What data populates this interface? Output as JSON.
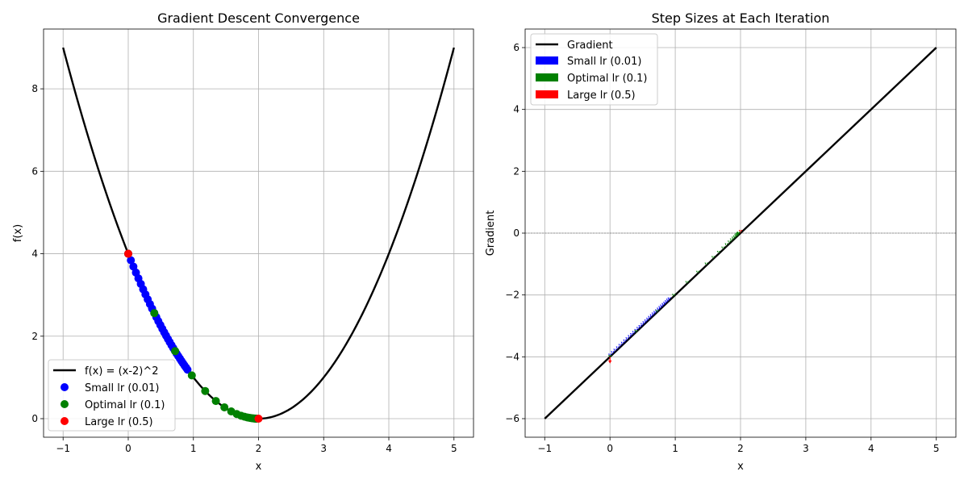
{
  "chart_data": [
    {
      "type": "line",
      "title": "Gradient Descent Convergence",
      "xlabel": "x",
      "ylabel": "f(x)",
      "xlim": [
        -1.3,
        5.3
      ],
      "ylim": [
        -0.45,
        9.45
      ],
      "xticks": [
        -1,
        0,
        1,
        2,
        3,
        4,
        5
      ],
      "yticks": [
        0,
        2,
        4,
        6,
        8
      ],
      "grid": true,
      "legend_position": "lower-left",
      "curve": {
        "name": "f(x) = (x-2)^2",
        "function": "(x-2)^2",
        "x_range": [
          -1,
          5
        ],
        "color": "#000000"
      },
      "series": [
        {
          "name": "Small lr (0.01)",
          "color": "#0000ff",
          "points": [
            [
              0.0,
              4.0
            ],
            [
              0.04,
              3.842
            ],
            [
              0.079,
              3.689
            ],
            [
              0.118,
              3.543
            ],
            [
              0.156,
              3.403
            ],
            [
              0.193,
              3.268
            ],
            [
              0.229,
              3.138
            ],
            [
              0.264,
              3.014
            ],
            [
              0.299,
              2.894
            ],
            [
              0.333,
              2.779
            ],
            [
              0.366,
              2.669
            ],
            [
              0.399,
              2.563
            ],
            [
              0.431,
              2.462
            ],
            [
              0.462,
              2.364
            ],
            [
              0.493,
              2.271
            ],
            [
              0.523,
              2.181
            ],
            [
              0.552,
              2.094
            ],
            [
              0.581,
              2.011
            ],
            [
              0.609,
              1.932
            ],
            [
              0.637,
              1.855
            ],
            [
              0.664,
              1.782
            ],
            [
              0.691,
              1.711
            ],
            [
              0.717,
              1.643
            ],
            [
              0.743,
              1.578
            ],
            [
              0.768,
              1.516
            ],
            [
              0.793,
              1.456
            ],
            [
              0.817,
              1.398
            ],
            [
              0.841,
              1.343
            ],
            [
              0.864,
              1.289
            ],
            [
              0.887,
              1.238
            ],
            [
              0.909,
              1.189
            ]
          ]
        },
        {
          "name": "Optimal lr (0.1)",
          "color": "#008000",
          "points": [
            [
              0.0,
              4.0
            ],
            [
              0.4,
              2.56
            ],
            [
              0.72,
              1.638
            ],
            [
              0.976,
              1.049
            ],
            [
              1.181,
              0.671
            ],
            [
              1.345,
              0.429
            ],
            [
              1.476,
              0.275
            ],
            [
              1.581,
              0.176
            ],
            [
              1.665,
              0.113
            ],
            [
              1.732,
              0.072
            ],
            [
              1.785,
              0.046
            ],
            [
              1.828,
              0.03
            ],
            [
              1.863,
              0.019
            ],
            [
              1.89,
              0.012
            ],
            [
              1.912,
              0.008
            ],
            [
              1.93,
              0.005
            ],
            [
              1.944,
              0.003
            ],
            [
              1.955,
              0.002
            ],
            [
              1.964,
              0.001
            ],
            [
              1.971,
              0.001
            ]
          ]
        },
        {
          "name": "Large lr (0.5)",
          "color": "#ff0000",
          "points": [
            [
              0.0,
              4.0
            ],
            [
              2.0,
              0.0
            ]
          ]
        }
      ]
    },
    {
      "type": "line",
      "title": "Step Sizes at Each Iteration",
      "xlabel": "x",
      "ylabel": "Gradient",
      "xlim": [
        -1.3,
        5.3
      ],
      "ylim": [
        -6.6,
        6.6
      ],
      "xticks": [
        -1,
        0,
        1,
        2,
        3,
        4,
        5
      ],
      "yticks": [
        -6,
        -4,
        -2,
        0,
        2,
        4,
        6
      ],
      "grid": true,
      "zero_line": true,
      "legend_position": "top-left",
      "line": {
        "name": "Gradient",
        "function": "2*(x-2)",
        "x_range": [
          -1,
          5
        ],
        "color": "#000000"
      },
      "arrows": [
        {
          "name": "Small lr (0.01)",
          "color": "#0000ff",
          "lr": 0.01,
          "x": [
            0.0,
            0.04,
            0.079,
            0.118,
            0.156,
            0.193,
            0.229,
            0.264,
            0.299,
            0.333,
            0.366,
            0.399,
            0.431,
            0.462,
            0.493,
            0.523,
            0.552,
            0.581,
            0.609,
            0.637,
            0.664,
            0.691,
            0.717,
            0.743,
            0.768,
            0.793,
            0.817,
            0.841,
            0.864,
            0.887,
            0.909
          ]
        },
        {
          "name": "Optimal lr (0.1)",
          "color": "#008000",
          "lr": 0.1,
          "x": [
            0.0,
            0.4,
            0.72,
            0.976,
            1.181,
            1.345,
            1.476,
            1.581,
            1.665,
            1.732,
            1.785,
            1.828,
            1.863,
            1.89,
            1.912,
            1.93,
            1.944,
            1.955,
            1.964,
            1.971
          ]
        },
        {
          "name": "Large lr (0.5)",
          "color": "#ff0000",
          "lr": 0.5,
          "x": [
            0.0,
            2.0
          ]
        }
      ]
    }
  ]
}
